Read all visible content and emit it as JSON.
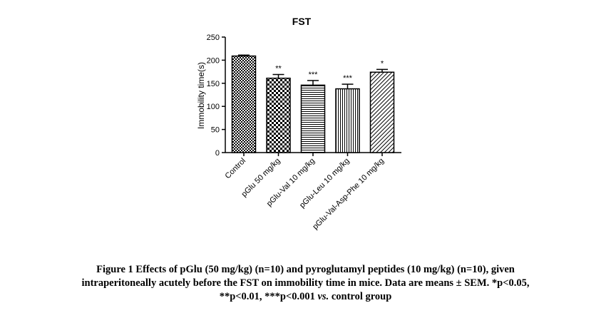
{
  "chart_data": {
    "type": "bar",
    "title": "FST",
    "ylabel": "Immobility time(s)",
    "xlabel": "",
    "ylim": [
      0,
      250
    ],
    "yticks": [
      0,
      50,
      100,
      150,
      200,
      250
    ],
    "categories": [
      "Control",
      "pGlu 50 mg/kg",
      "pGlu-Val 10 mg/kg",
      "pGlu-Leu 10 mg/kg",
      "pGlu-Val-Asp-Phe 10 mg/kg"
    ],
    "values": [
      209,
      161,
      146,
      138,
      174
    ],
    "errors": [
      2,
      8,
      10,
      10,
      6
    ],
    "significance": [
      "",
      "**",
      "***",
      "***",
      "*"
    ],
    "patterns": [
      "checker-fine",
      "checker-coarse",
      "horizontal-lines",
      "vertical-lines",
      "diagonal-lines"
    ],
    "bar_color": "#000000",
    "grid": false,
    "legend": "none"
  },
  "caption": {
    "line1": "Figure 1 Effects of pGlu (50 mg/kg) (n=10) and pyroglutamyl peptides (10 mg/kg) (n=10), given",
    "line2": "intraperitoneally acutely before the FST on immobility time in mice. Data are means ± SEM. *p<0.05,",
    "line3_a": "**p<0.01, ***p<0.001 ",
    "line3_vs": "vs.",
    "line3_b": " control group"
  }
}
